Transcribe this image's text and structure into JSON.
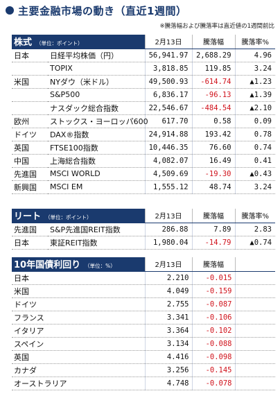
{
  "title": "主要金融市場の動き（直近1週間）",
  "note": "※騰落幅および騰落率は直近値の1週間前比",
  "stocks": {
    "header": {
      "label": "株式",
      "unit": "（単位：ポイント）",
      "date": "2月13日",
      "change": "騰落幅",
      "rate": "騰落率%"
    },
    "rows": [
      {
        "region": "日本",
        "name": "日経平均株価（円）",
        "value": "56,941.97",
        "change": "2,688.29",
        "rate": "4.96",
        "neg": false
      },
      {
        "region": "",
        "name": "TOPIX",
        "value": "3,818.85",
        "change": "119.85",
        "rate": "3.24",
        "neg": false
      },
      {
        "region": "米国",
        "name": "NYダウ（米ドル）",
        "value": "49,500.93",
        "change": "-614.74",
        "rate": "▲1.23",
        "neg": true
      },
      {
        "region": "",
        "name": "S&P500",
        "value": "6,836.17",
        "change": "-96.13",
        "rate": "▲1.39",
        "neg": true
      },
      {
        "region": "",
        "name": "ナスダック総合指数",
        "value": "22,546.67",
        "change": "-484.54",
        "rate": "▲2.10",
        "neg": true
      },
      {
        "region": "欧州",
        "name": "ストックス・ヨーロッパ600",
        "value": "617.70",
        "change": "0.58",
        "rate": "0.09",
        "neg": false
      },
      {
        "region": "ドイツ",
        "name": "DAX®指数",
        "value": "24,914.88",
        "change": "193.42",
        "rate": "0.78",
        "neg": false
      },
      {
        "region": "英国",
        "name": "FTSE100指数",
        "value": "10,446.35",
        "change": "76.60",
        "rate": "0.74",
        "neg": false
      },
      {
        "region": "中国",
        "name": "上海総合指数",
        "value": "4,082.07",
        "change": "16.49",
        "rate": "0.41",
        "neg": false
      },
      {
        "region": "先進国",
        "name": "MSCI WORLD",
        "value": "4,509.69",
        "change": "-19.30",
        "rate": "▲0.43",
        "neg": true
      },
      {
        "region": "新興国",
        "name": "MSCI EM",
        "value": "1,555.12",
        "change": "48.74",
        "rate": "3.24",
        "neg": false
      }
    ]
  },
  "reit": {
    "header": {
      "label": "リート",
      "unit": "（単位：ポイント）",
      "date": "2月13日",
      "change": "騰落幅",
      "rate": "騰落率%"
    },
    "rows": [
      {
        "region": "先進国",
        "name": "S&P先進国REIT指数",
        "value": "286.88",
        "change": "7.89",
        "rate": "2.83",
        "neg": false
      },
      {
        "region": "日本",
        "name": "東証REIT指数",
        "value": "1,980.04",
        "change": "-14.79",
        "rate": "▲0.74",
        "neg": true
      }
    ]
  },
  "bonds": {
    "header": {
      "label": "10年国債利回り",
      "unit": "（単位：%）",
      "date": "2月13日",
      "change": "騰落幅"
    },
    "rows": [
      {
        "country": "日本",
        "value": "2.210",
        "change": "-0.015"
      },
      {
        "country": "米国",
        "value": "4.049",
        "change": "-0.159"
      },
      {
        "country": "ドイツ",
        "value": "2.755",
        "change": "-0.087"
      },
      {
        "country": "フランス",
        "value": "3.341",
        "change": "-0.106"
      },
      {
        "country": "イタリア",
        "value": "3.364",
        "change": "-0.102"
      },
      {
        "country": "スペイン",
        "value": "3.134",
        "change": "-0.088"
      },
      {
        "country": "英国",
        "value": "4.416",
        "change": "-0.098"
      },
      {
        "country": "カナダ",
        "value": "3.256",
        "change": "-0.145"
      },
      {
        "country": "オーストラリア",
        "value": "4.748",
        "change": "-0.078"
      }
    ]
  },
  "colors": {
    "navy": "#1a3a6e",
    "negative": "#d0121b",
    "zebra": "#e9eef7"
  }
}
